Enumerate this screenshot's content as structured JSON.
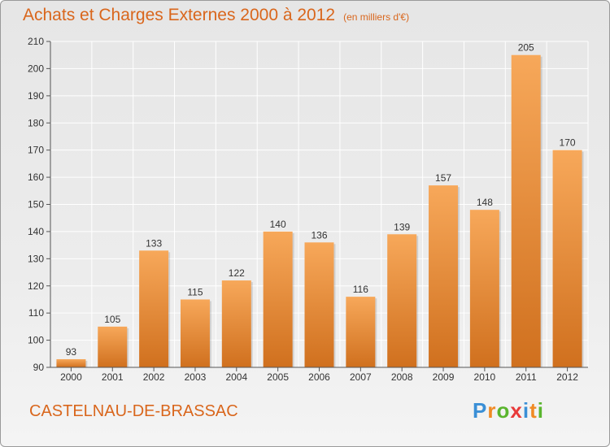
{
  "title": "Achats et Charges Externes 2000 à 2012",
  "unit": "(en milliers d'€)",
  "location": "CASTELNAU-DE-BRASSAC",
  "brand": "Proxiti",
  "colors": {
    "title": "#d9661c",
    "bar_top": "#f7a85a",
    "bar_bottom": "#d0701e",
    "axis": "#555555",
    "grid": "#ffffff",
    "brand_letters": [
      "#3a8fd6",
      "#f08a24",
      "#5ab52e",
      "#e83a3a",
      "#3a8fd6",
      "#f08a24",
      "#5ab52e"
    ]
  },
  "chart_data": {
    "type": "bar",
    "categories": [
      "2000",
      "2001",
      "2002",
      "2003",
      "2004",
      "2005",
      "2006",
      "2007",
      "2008",
      "2009",
      "2010",
      "2011",
      "2012"
    ],
    "values": [
      93,
      105,
      133,
      115,
      122,
      140,
      136,
      116,
      139,
      157,
      148,
      205,
      170
    ],
    "ylim": [
      90,
      210
    ],
    "yticks": [
      90,
      100,
      110,
      120,
      130,
      140,
      150,
      160,
      170,
      180,
      190,
      200,
      210
    ],
    "grid": true,
    "legend": "none"
  }
}
